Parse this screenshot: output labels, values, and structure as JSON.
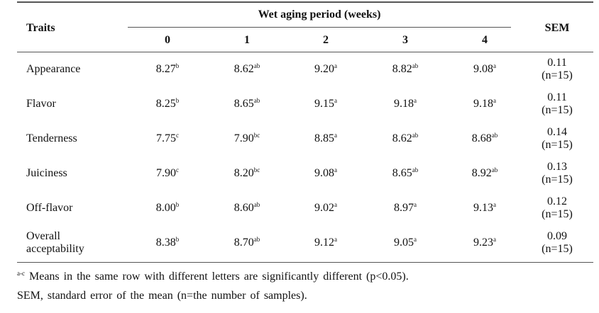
{
  "header": {
    "traits": "Traits",
    "group": "Wet aging period (weeks)",
    "columns": [
      "0",
      "1",
      "2",
      "3",
      "4"
    ],
    "sem": "SEM"
  },
  "table": {
    "rows": [
      {
        "trait": "Appearance",
        "cells": [
          {
            "value": "8.27",
            "sup": "b"
          },
          {
            "value": "8.62",
            "sup": "ab"
          },
          {
            "value": "9.20",
            "sup": "a"
          },
          {
            "value": "8.82",
            "sup": "ab"
          },
          {
            "value": "9.08",
            "sup": "a"
          }
        ],
        "sem": "0.11",
        "n": "(n=15)"
      },
      {
        "trait": "Flavor",
        "cells": [
          {
            "value": "8.25",
            "sup": "b"
          },
          {
            "value": "8.65",
            "sup": "ab"
          },
          {
            "value": "9.15",
            "sup": "a"
          },
          {
            "value": "9.18",
            "sup": "a"
          },
          {
            "value": "9.18",
            "sup": "a"
          }
        ],
        "sem": "0.11",
        "n": "(n=15)"
      },
      {
        "trait": "Tenderness",
        "cells": [
          {
            "value": "7.75",
            "sup": "c"
          },
          {
            "value": "7.90",
            "sup": "bc"
          },
          {
            "value": "8.85",
            "sup": "a"
          },
          {
            "value": "8.62",
            "sup": "ab"
          },
          {
            "value": "8.68",
            "sup": "ab"
          }
        ],
        "sem": "0.14",
        "n": "(n=15)"
      },
      {
        "trait": "Juiciness",
        "cells": [
          {
            "value": "7.90",
            "sup": "c"
          },
          {
            "value": "8.20",
            "sup": "bc"
          },
          {
            "value": "9.08",
            "sup": "a"
          },
          {
            "value": "8.65",
            "sup": "ab"
          },
          {
            "value": "8.92",
            "sup": "ab"
          }
        ],
        "sem": "0.13",
        "n": "(n=15)"
      },
      {
        "trait": "Off-flavor",
        "cells": [
          {
            "value": "8.00",
            "sup": "b"
          },
          {
            "value": "8.60",
            "sup": "ab"
          },
          {
            "value": "9.02",
            "sup": "a"
          },
          {
            "value": "8.97",
            "sup": "a"
          },
          {
            "value": "9.13",
            "sup": "a"
          }
        ],
        "sem": "0.12",
        "n": "(n=15)"
      },
      {
        "trait": "Overall acceptability",
        "cells": [
          {
            "value": "8.38",
            "sup": "b"
          },
          {
            "value": "8.70",
            "sup": "ab"
          },
          {
            "value": "9.12",
            "sup": "a"
          },
          {
            "value": "9.05",
            "sup": "a"
          },
          {
            "value": "9.23",
            "sup": "a"
          }
        ],
        "sem": "0.09",
        "n": "(n=15)"
      }
    ]
  },
  "footnotes": [
    {
      "sup": "a-c",
      "text": "Means in the same row with different letters are significantly different (p<0.05)."
    },
    {
      "text": "SEM, standard error of the mean (n=the number of samples)."
    }
  ]
}
